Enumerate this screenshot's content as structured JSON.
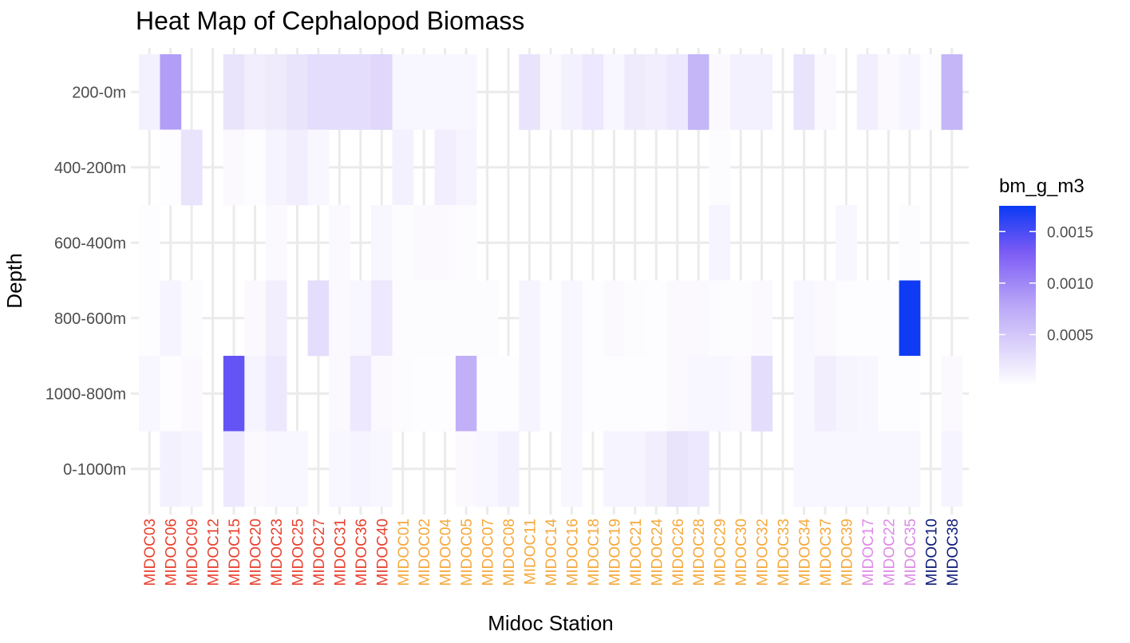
{
  "chart_data": {
    "type": "heatmap",
    "title": "Heat Map of Cephalopod Biomass",
    "xlabel": "Midoc Station",
    "ylabel": "Depth",
    "x": [
      "MIDOC03",
      "MIDOC06",
      "MIDOC09",
      "MIDOC12",
      "MIDOC15",
      "MIDOC20",
      "MIDOC23",
      "MIDOC25",
      "MIDOC27",
      "MIDOC31",
      "MIDOC36",
      "MIDOC40",
      "MIDOC01",
      "MIDOC02",
      "MIDOC04",
      "MIDOC05",
      "MIDOC07",
      "MIDOC08",
      "MIDOC11",
      "MIDOC14",
      "MIDOC16",
      "MIDOC18",
      "MIDOC19",
      "MIDOC21",
      "MIDOC24",
      "MIDOC26",
      "MIDOC28",
      "MIDOC29",
      "MIDOC30",
      "MIDOC32",
      "MIDOC33",
      "MIDOC34",
      "MIDOC37",
      "MIDOC39",
      "MIDOC17",
      "MIDOC22",
      "MIDOC35",
      "MIDOC10",
      "MIDOC38"
    ],
    "x_label_colors": [
      "#e8412f",
      "#e8412f",
      "#e8412f",
      "#e8412f",
      "#e8412f",
      "#e8412f",
      "#e8412f",
      "#e8412f",
      "#e8412f",
      "#e8412f",
      "#e8412f",
      "#e8412f",
      "#f5a93b",
      "#f5a93b",
      "#f5a93b",
      "#f5a93b",
      "#f5a93b",
      "#f5a93b",
      "#f5a93b",
      "#f5a93b",
      "#f5a93b",
      "#f5a93b",
      "#f5a93b",
      "#f5a93b",
      "#f5a93b",
      "#f5a93b",
      "#f5a93b",
      "#f5a93b",
      "#f5a93b",
      "#f5a93b",
      "#f5a93b",
      "#f5a93b",
      "#f5a93b",
      "#f5a93b",
      "#dd8ae6",
      "#dd8ae6",
      "#dd8ae6",
      "#0f1c78",
      "#0f1c78"
    ],
    "y": [
      "200-0m",
      "400-200m",
      "600-400m",
      "800-600m",
      "1000-800m",
      "0-1000m"
    ],
    "values": [
      [
        0.00012,
        0.00085,
        null,
        null,
        0.00025,
        0.00015,
        0.00018,
        0.00025,
        0.0003,
        0.0003,
        0.0003,
        0.00035,
        8e-05,
        8e-05,
        8e-05,
        8e-05,
        null,
        null,
        0.00025,
        5e-05,
        0.00012,
        0.0002,
        8e-05,
        0.00018,
        0.00015,
        0.0002,
        0.00065,
        5e-05,
        0.00012,
        0.00012,
        null,
        0.00025,
        5e-05,
        null,
        0.00015,
        5e-05,
        0.0001,
        2e-05,
        0.00065
      ],
      [
        null,
        2e-05,
        0.00025,
        null,
        5e-05,
        2e-05,
        0.0001,
        0.00015,
        8e-05,
        null,
        null,
        null,
        0.00012,
        null,
        0.00015,
        0.0001,
        null,
        null,
        null,
        null,
        null,
        null,
        null,
        null,
        null,
        null,
        null,
        3e-05,
        null,
        null,
        null,
        null,
        null,
        null,
        null,
        null,
        null,
        null,
        null
      ],
      [
        2e-05,
        null,
        null,
        null,
        null,
        null,
        5e-05,
        null,
        null,
        5e-05,
        null,
        8e-05,
        3e-05,
        5e-05,
        5e-05,
        3e-05,
        null,
        null,
        null,
        null,
        null,
        null,
        null,
        null,
        null,
        null,
        null,
        0.0001,
        null,
        null,
        null,
        null,
        null,
        8e-05,
        null,
        null,
        3e-05,
        null,
        null
      ],
      [
        2e-05,
        0.0001,
        3e-05,
        null,
        null,
        5e-05,
        0.00015,
        null,
        0.0003,
        5e-05,
        8e-05,
        0.0002,
        3e-05,
        3e-05,
        3e-05,
        3e-05,
        3e-05,
        null,
        0.0001,
        2e-05,
        8e-05,
        2e-05,
        5e-05,
        3e-05,
        2e-05,
        5e-05,
        5e-05,
        3e-05,
        3e-05,
        5e-05,
        null,
        8e-05,
        5e-05,
        2e-05,
        2e-05,
        2e-05,
        0.00173,
        null,
        null
      ],
      [
        8e-05,
        2e-05,
        5e-05,
        null,
        0.0014,
        0.0001,
        0.0002,
        null,
        null,
        5e-05,
        0.0002,
        5e-05,
        3e-05,
        2e-05,
        2e-05,
        0.0007,
        2e-05,
        2e-05,
        0.0001,
        2e-05,
        8e-05,
        2e-05,
        2e-05,
        2e-05,
        2e-05,
        5e-05,
        8e-05,
        8e-05,
        5e-05,
        0.0003,
        null,
        8e-05,
        0.00015,
        0.0001,
        8e-05,
        2e-05,
        2e-05,
        null,
        5e-05
      ],
      [
        null,
        0.00012,
        0.0001,
        null,
        0.0002,
        5e-05,
        8e-05,
        8e-05,
        null,
        8e-05,
        0.0001,
        8e-05,
        null,
        null,
        null,
        5e-05,
        8e-05,
        0.00012,
        null,
        null,
        8e-05,
        null,
        0.0001,
        0.0001,
        0.00015,
        0.00025,
        0.0002,
        null,
        null,
        null,
        null,
        8e-05,
        8e-05,
        8e-05,
        8e-05,
        8e-05,
        8e-05,
        null,
        0.0001
      ]
    ],
    "legend": {
      "title": "bm_g_m3",
      "ticks": [
        "0.0005",
        "0.0010",
        "0.0015"
      ],
      "tick_values": [
        0.0005,
        0.001,
        0.0015
      ],
      "range": [
        0,
        0.00175
      ],
      "color_low": "#ffffff",
      "color_mid": "#7a5af5",
      "color_high": "#0a3af5",
      "placement": "right"
    },
    "grid": true
  }
}
